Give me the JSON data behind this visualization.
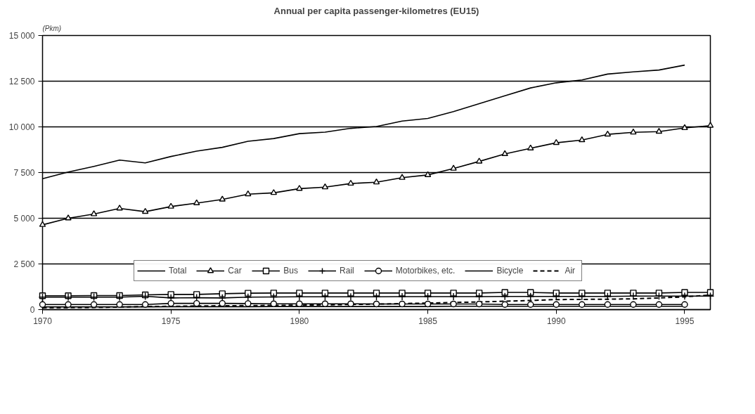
{
  "chart_data": {
    "type": "line",
    "title": "Annual per capita passenger-kilometres (EU15)",
    "ylabel": "(Pkm)",
    "x": [
      1970,
      1971,
      1972,
      1973,
      1974,
      1975,
      1976,
      1977,
      1978,
      1979,
      1980,
      1981,
      1982,
      1983,
      1984,
      1985,
      1986,
      1987,
      1988,
      1989,
      1990,
      1991,
      1992,
      1993,
      1994,
      1995,
      1996
    ],
    "series": [
      {
        "name": "Total",
        "color": "#000000",
        "marker": "none",
        "line_style": "solid",
        "values": [
          7160,
          7530,
          7840,
          8180,
          8030,
          8380,
          8670,
          8880,
          9210,
          9360,
          9630,
          9710,
          9920,
          10020,
          10320,
          10460,
          10840,
          11270,
          11700,
          12130,
          12410,
          12570,
          12890,
          13010,
          13110,
          13380,
          null
        ]
      },
      {
        "name": "Car",
        "color": "#000000",
        "marker": "triangle",
        "line_style": "solid",
        "values": [
          4640,
          5000,
          5230,
          5540,
          5360,
          5640,
          5830,
          6030,
          6320,
          6390,
          6620,
          6700,
          6900,
          6970,
          7220,
          7370,
          7720,
          8110,
          8520,
          8830,
          9130,
          9280,
          9590,
          9700,
          9740,
          9940,
          10070
        ]
      },
      {
        "name": "Bus",
        "color": "#000000",
        "marker": "square",
        "line_style": "solid",
        "values": [
          760,
          760,
          770,
          770,
          810,
          830,
          830,
          870,
          900,
          910,
          910,
          910,
          910,
          910,
          910,
          910,
          910,
          910,
          940,
          940,
          910,
          910,
          910,
          910,
          910,
          940,
          940
        ]
      },
      {
        "name": "Rail",
        "color": "#000000",
        "marker": "cross",
        "line_style": "solid",
        "values": [
          680,
          680,
          680,
          680,
          730,
          640,
          650,
          640,
          680,
          690,
          700,
          700,
          700,
          700,
          710,
          710,
          710,
          710,
          720,
          720,
          720,
          720,
          720,
          740,
          740,
          740,
          740
        ]
      },
      {
        "name": "Motorbikes, etc.",
        "color": "#000000",
        "marker": "circle",
        "line_style": "solid",
        "values": [
          280,
          280,
          280,
          280,
          280,
          340,
          340,
          340,
          330,
          320,
          320,
          320,
          320,
          310,
          310,
          310,
          310,
          310,
          280,
          280,
          280,
          280,
          280,
          280,
          280,
          280,
          null
        ]
      },
      {
        "name": "Bicycle",
        "color": "#000000",
        "marker": "none",
        "line_style": "solid",
        "values": [
          150,
          150,
          150,
          150,
          150,
          160,
          160,
          160,
          160,
          170,
          170,
          170,
          170,
          170,
          170,
          170,
          180,
          180,
          180,
          180,
          180,
          180,
          180,
          180,
          180,
          180,
          null
        ]
      },
      {
        "name": "Air",
        "color": "#000000",
        "marker": "none",
        "line_style": "dashed",
        "values": [
          100,
          110,
          120,
          140,
          170,
          180,
          200,
          210,
          220,
          230,
          240,
          260,
          280,
          300,
          330,
          360,
          390,
          420,
          460,
          500,
          550,
          560,
          570,
          590,
          640,
          700,
          800
        ]
      }
    ],
    "xlim": [
      1970,
      1996
    ],
    "xticks": [
      1970,
      1975,
      1980,
      1985,
      1990,
      1995
    ],
    "ylim": [
      0,
      15000
    ],
    "yticks": [
      0,
      {
        "value": 2500,
        "label": "2 500"
      },
      {
        "value": 5000,
        "label": "5 000"
      },
      {
        "value": 7500,
        "label": "7 500"
      },
      {
        "value": 10000,
        "label": "10 000"
      },
      {
        "value": 12500,
        "label": "12 500"
      },
      {
        "value": 15000,
        "label": "15 000"
      }
    ],
    "grid": "y",
    "legend": "bottom"
  }
}
